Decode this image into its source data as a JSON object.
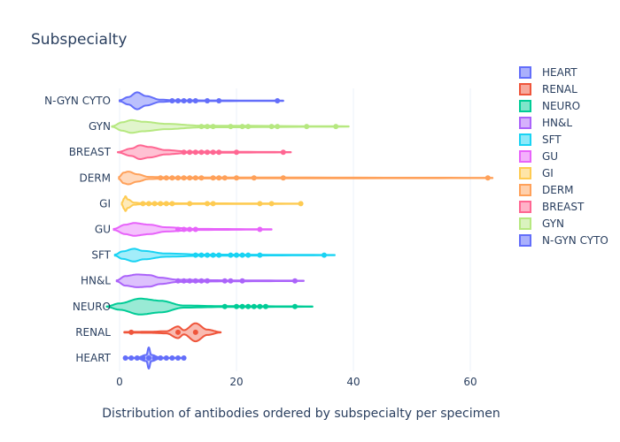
{
  "chart_data": {
    "type": "violin",
    "title": "Subspecialty",
    "xlabel": "Distribution of antibodies ordered by subspecialty per specimen",
    "ylabel": "",
    "xlim": [
      -4,
      64
    ],
    "xticks": [
      0,
      20,
      40,
      60
    ],
    "grid": true,
    "legend_position": "right",
    "categories": [
      "HEART",
      "RENAL",
      "NEURO",
      "HN&L",
      "SFT",
      "GU",
      "GI",
      "DERM",
      "BREAST",
      "GYN",
      "N-GYN CYTO"
    ],
    "series": [
      {
        "name": "HEART",
        "color": "#636efa",
        "fill": "#aab0fc",
        "kde": [
          [
            1,
            0.02
          ],
          [
            3,
            0.03
          ],
          [
            4.6,
            0.3
          ],
          [
            5,
            1.0
          ],
          [
            5.4,
            0.3
          ],
          [
            7,
            0.03
          ],
          [
            11,
            0.02
          ]
        ],
        "points": [
          1,
          2,
          3,
          4,
          5,
          6,
          7,
          8,
          9,
          10,
          11
        ]
      },
      {
        "name": "RENAL",
        "color": "#ef553b",
        "fill": "#f7a99c",
        "kde": [
          [
            0.8,
            0.03
          ],
          [
            2,
            0.04
          ],
          [
            5,
            0.05
          ],
          [
            8,
            0.1
          ],
          [
            10,
            0.55
          ],
          [
            11,
            0.2
          ],
          [
            13,
            0.85
          ],
          [
            15,
            0.25
          ],
          [
            17.3,
            0.02
          ]
        ],
        "points": [
          2,
          10,
          13
        ]
      },
      {
        "name": "NEURO",
        "color": "#00cc96",
        "fill": "#7fe5ca",
        "kde": [
          [
            -2.2,
            0.02
          ],
          [
            0,
            0.3
          ],
          [
            3.5,
            0.75
          ],
          [
            7,
            0.55
          ],
          [
            11,
            0.1
          ],
          [
            18,
            0.04
          ],
          [
            33,
            0.02
          ]
        ],
        "points": [
          18,
          20,
          21,
          22,
          23,
          24,
          25,
          30
        ]
      },
      {
        "name": "HN&L",
        "color": "#ab63fa",
        "fill": "#d5b1fc",
        "kde": [
          [
            -0.5,
            0.05
          ],
          [
            1,
            0.45
          ],
          [
            3,
            0.6
          ],
          [
            5,
            0.55
          ],
          [
            7,
            0.3
          ],
          [
            10,
            0.1
          ],
          [
            20,
            0.04
          ],
          [
            31.5,
            0.02
          ]
        ],
        "points": [
          10,
          11,
          12,
          13,
          14,
          15,
          18,
          19,
          21,
          30
        ]
      },
      {
        "name": "SFT",
        "color": "#19d3f3",
        "fill": "#8ce9f9",
        "kde": [
          [
            -0.8,
            0.05
          ],
          [
            0.5,
            0.35
          ],
          [
            2.5,
            0.6
          ],
          [
            4,
            0.4
          ],
          [
            8,
            0.15
          ],
          [
            15,
            0.05
          ],
          [
            36.8,
            0.02
          ]
        ],
        "points": [
          13,
          14,
          15,
          16,
          17,
          19,
          20,
          21,
          22,
          24,
          35
        ]
      },
      {
        "name": "GU",
        "color": "#e763fa",
        "fill": "#f3b1fc",
        "kde": [
          [
            -1,
            0.05
          ],
          [
            1,
            0.45
          ],
          [
            2.5,
            0.6
          ],
          [
            5,
            0.45
          ],
          [
            8,
            0.2
          ],
          [
            13,
            0.05
          ],
          [
            26,
            0.02
          ]
        ],
        "points": [
          10,
          11,
          12,
          13,
          24
        ]
      },
      {
        "name": "GI",
        "color": "#fecb52",
        "fill": "#fee5a8",
        "kde": [
          [
            0.4,
            0.1
          ],
          [
            0.8,
            0.5
          ],
          [
            1,
            0.7
          ],
          [
            1.4,
            0.4
          ],
          [
            2.5,
            0.1
          ],
          [
            4,
            0.04
          ],
          [
            31,
            0.02
          ]
        ],
        "points": [
          4,
          5,
          6,
          7,
          8,
          9,
          12,
          15,
          16,
          24,
          26,
          31
        ]
      },
      {
        "name": "DERM",
        "color": "#ffa15a",
        "fill": "#ffd0ac",
        "kde": [
          [
            -0.1,
            0.1
          ],
          [
            0.7,
            0.5
          ],
          [
            1.5,
            0.6
          ],
          [
            3,
            0.35
          ],
          [
            5,
            0.1
          ],
          [
            9,
            0.05
          ],
          [
            63.8,
            0.02
          ]
        ],
        "points": [
          7,
          8,
          9,
          10,
          11,
          12,
          13,
          14,
          16,
          17,
          18,
          20,
          23,
          28,
          63
        ]
      },
      {
        "name": "BREAST",
        "color": "#ff6692",
        "fill": "#ffb2c8",
        "kde": [
          [
            -0.3,
            0.02
          ],
          [
            2,
            0.35
          ],
          [
            3.5,
            0.65
          ],
          [
            5,
            0.5
          ],
          [
            8,
            0.2
          ],
          [
            12,
            0.05
          ],
          [
            29.3,
            0.02
          ]
        ],
        "points": [
          11,
          12,
          13,
          14,
          15,
          16,
          17,
          20,
          28
        ]
      },
      {
        "name": "GYN",
        "color": "#b6e880",
        "fill": "#daf3bf",
        "kde": [
          [
            -1.3,
            0.03
          ],
          [
            0.5,
            0.4
          ],
          [
            2,
            0.6
          ],
          [
            4,
            0.45
          ],
          [
            8,
            0.25
          ],
          [
            14,
            0.08
          ],
          [
            39.2,
            0.02
          ]
        ],
        "points": [
          14,
          15,
          16,
          19,
          21,
          22,
          26,
          27,
          32,
          37
        ]
      },
      {
        "name": "N-GYN CYTO",
        "color": "#636efa",
        "fill": "#aab0fc",
        "kde": [
          [
            0,
            0.05
          ],
          [
            1.5,
            0.35
          ],
          [
            3,
            0.8
          ],
          [
            4.5,
            0.45
          ],
          [
            7,
            0.1
          ],
          [
            10,
            0.04
          ],
          [
            28,
            0.02
          ]
        ],
        "points": [
          9,
          10,
          11,
          12,
          13,
          15,
          17,
          27
        ]
      }
    ]
  }
}
